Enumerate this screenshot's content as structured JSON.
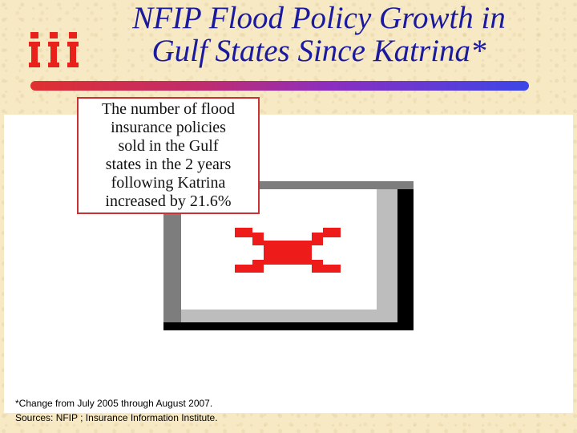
{
  "slide": {
    "title_line1": "NFIP Flood Policy Growth in",
    "title_line2": "Gulf States Since Katrina*",
    "logo_icon": "iii-logo-icon",
    "colors": {
      "title": "#1a1aa0",
      "accent_red": "#e8211b",
      "callout_border": "#c83232",
      "divider_start": "#e03030",
      "divider_end": "#3c46e8"
    }
  },
  "callout": {
    "lines": [
      "The number of flood",
      "insurance policies",
      "sold in the Gulf",
      "states in the 2 years",
      "following Katrina",
      "increased by 21.6%"
    ]
  },
  "chart": {
    "placeholder_icon": "broken-chart-icon"
  },
  "footnote": {
    "line1": "*Change from July 2005 through August 2007.",
    "line2": "Sources: NFIP ; Insurance Information Institute."
  }
}
